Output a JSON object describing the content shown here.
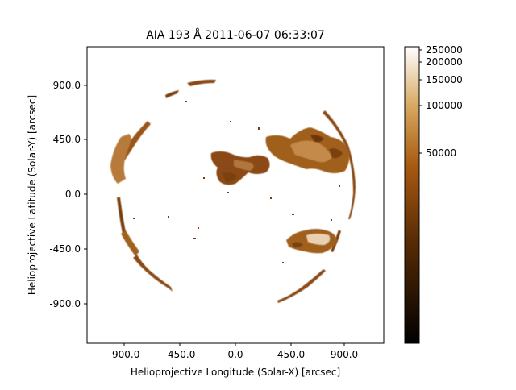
{
  "figure": {
    "title": "AIA 193 Å 2011-06-07 06:33:07",
    "x_axis": {
      "label": "Helioprojective Longitude (Solar-X) [arcsec]",
      "ticks": [
        "-900.0",
        "-450.0",
        "0.0",
        "450.0",
        "900.0"
      ]
    },
    "y_axis": {
      "label": "Helioprojective Latitude (Solar-Y) [arcsec]",
      "ticks": [
        "900.0",
        "450.0",
        "0.0",
        "-450.0",
        "-900.0"
      ]
    },
    "colorbar": {
      "ticks": [
        "250000",
        "200000",
        "150000",
        "100000",
        "50000"
      ],
      "scale": "log",
      "colors": {
        "low": "#000000",
        "mid": "#a85a10",
        "high": "#ffffff"
      }
    }
  }
}
